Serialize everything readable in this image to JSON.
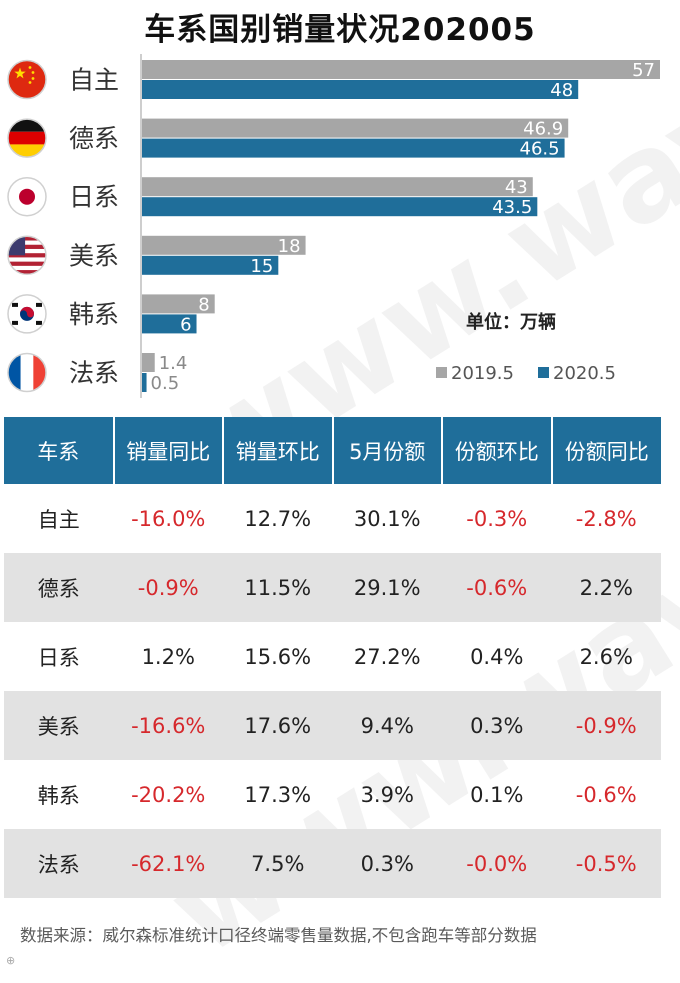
{
  "title": "车系国别销量状况202005",
  "chart_data": {
    "type": "bar",
    "orientation": "horizontal",
    "unit_label": "单位：万辆",
    "categories": [
      "自主",
      "德系",
      "日系",
      "美系",
      "韩系",
      "法系"
    ],
    "flags": [
      "china-flag-icon",
      "germany-flag-icon",
      "japan-flag-icon",
      "usa-flag-icon",
      "korea-flag-icon",
      "france-flag-icon"
    ],
    "series": [
      {
        "name": "2019.5",
        "color": "#a6a6a6",
        "values": [
          57,
          46.9,
          43,
          18,
          8,
          1.4
        ],
        "labels": [
          "57",
          "46.9",
          "43",
          "18",
          "8",
          "1.4"
        ]
      },
      {
        "name": "2020.5",
        "color": "#1f6e9a",
        "values": [
          48,
          46.5,
          43.5,
          15,
          6,
          0.5
        ],
        "labels": [
          "48",
          "46.5",
          "43.5",
          "15",
          "6",
          "0.5"
        ]
      }
    ],
    "xlim": [
      0,
      57
    ],
    "legend_position": "bottom-right"
  },
  "table": {
    "headers": [
      "车系",
      "销量同比",
      "销量环比",
      "5月份额",
      "份额环比",
      "份额同比"
    ],
    "rows": [
      [
        "自主",
        "-16.0%",
        "12.7%",
        "30.1%",
        "-0.3%",
        "-2.8%"
      ],
      [
        "德系",
        "-0.9%",
        "11.5%",
        "29.1%",
        "-0.6%",
        "2.2%"
      ],
      [
        "日系",
        "1.2%",
        "15.6%",
        "27.2%",
        "0.4%",
        "2.6%"
      ],
      [
        "美系",
        "-16.6%",
        "17.6%",
        "9.4%",
        "0.3%",
        "-0.9%"
      ],
      [
        "韩系",
        "-20.2%",
        "17.3%",
        "3.9%",
        "0.1%",
        "-0.6%"
      ],
      [
        "法系",
        "-62.1%",
        "7.5%",
        "0.3%",
        "-0.0%",
        "-0.5%"
      ]
    ]
  },
  "footnote": "数据来源：威尔森标准统计口径终端零售量数据,不包含跑车等部分数据",
  "watermark": "www.way-s.cn",
  "colors": {
    "accent": "#1f6e9a",
    "gray": "#a6a6a6",
    "negative": "#d6282c",
    "alt_row": "#e2e2e2"
  }
}
